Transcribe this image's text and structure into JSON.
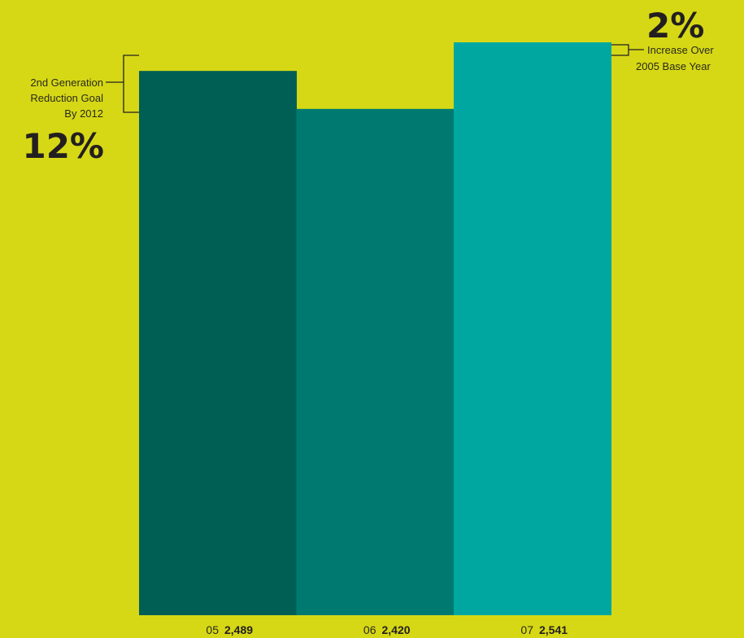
{
  "chart_data": {
    "type": "bar",
    "categories": [
      "05",
      "06",
      "07"
    ],
    "values": [
      2489,
      2420,
      2541
    ],
    "value_labels": [
      "2,489",
      "2,420",
      "2,541"
    ],
    "bar_colors": [
      "#005f55",
      "#007a70",
      "#00a7a0"
    ],
    "background_color": "#d6d816",
    "ylim": [
      0,
      2541
    ],
    "grid": false,
    "legend": "none",
    "annotations": {
      "left": {
        "lines": [
          "2nd Generation",
          "Reduction Goal",
          "By 2012"
        ],
        "big": "12%"
      },
      "right": {
        "big": "2%",
        "lines": [
          "Increase Over",
          "2005 Base Year"
        ]
      }
    }
  }
}
